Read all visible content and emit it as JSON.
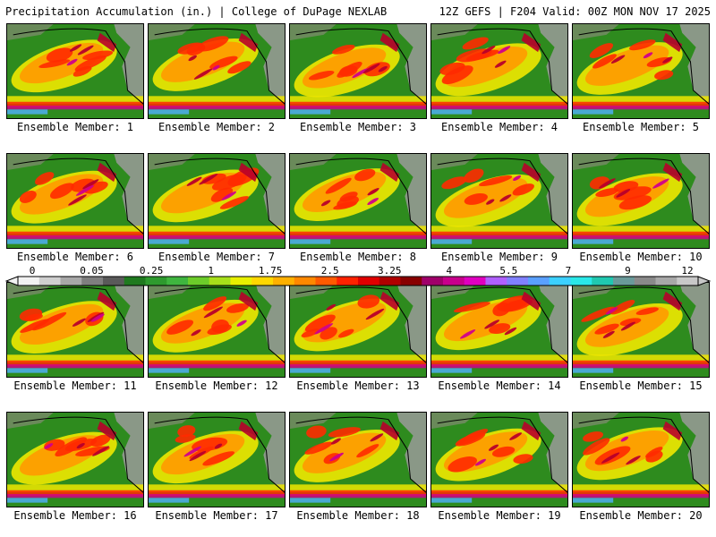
{
  "header": {
    "title_left": "Precipitation Accumulation (in.) | College of DuPage NEXLAB",
    "title_right": "12Z GEFS | F204 Valid: 00Z MON NOV 17 2025"
  },
  "panel_label_prefix": "Ensemble Member: ",
  "members": [
    "1",
    "2",
    "3",
    "4",
    "5",
    "6",
    "7",
    "8",
    "9",
    "10",
    "11",
    "12",
    "13",
    "14",
    "15",
    "16",
    "17",
    "18",
    "19",
    "20"
  ],
  "colorbar": {
    "labels": [
      "0",
      "0.05",
      "0.25",
      "1",
      "1.75",
      "2.5",
      "3.25",
      "4",
      "5.5",
      "7",
      "9",
      "12"
    ],
    "colors": [
      "#f2f2f2",
      "#cfcfcf",
      "#a8a8a8",
      "#7f7f7f",
      "#5a5a5a",
      "#1f7a1f",
      "#2e9a2e",
      "#3fb53f",
      "#6ccc2a",
      "#a8e01a",
      "#e8f000",
      "#ffd700",
      "#ffb000",
      "#ff8800",
      "#ff5a00",
      "#ff2200",
      "#e00000",
      "#b00000",
      "#880000",
      "#a0006a",
      "#c8008c",
      "#e000c0",
      "#b060ff",
      "#8080ff",
      "#5aa0ff",
      "#3cd0ff",
      "#2ae8e8",
      "#20c8b0",
      "#6a9a9a",
      "#8a8a8a",
      "#a8a8a8",
      "#c8c8c8"
    ]
  },
  "map_palette": {
    "ocean_green": "#2e8b1e",
    "land_gray": "#9a9a9a",
    "yellow": "#f0e800",
    "orange": "#ff9a00",
    "red": "#ff2a00",
    "darkred": "#b8002a",
    "magenta": "#d0008c",
    "purple": "#8050e0",
    "cyan": "#50b0ff"
  }
}
